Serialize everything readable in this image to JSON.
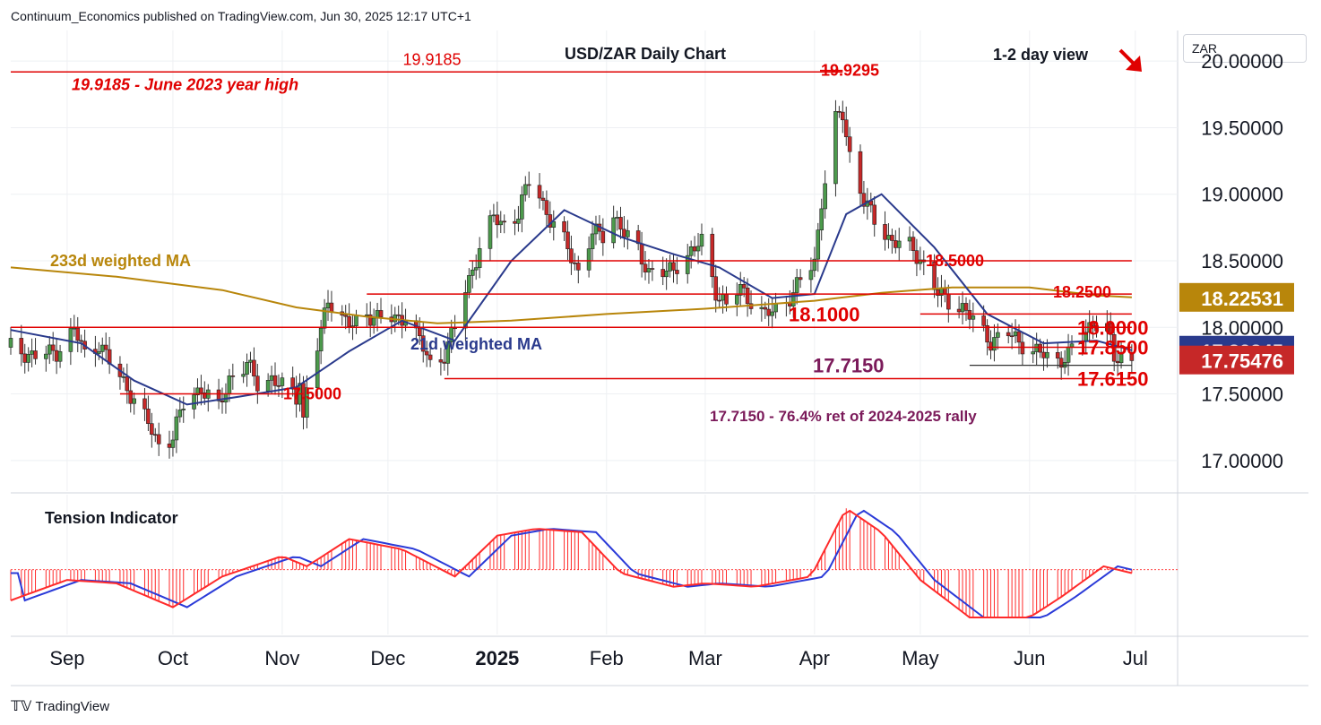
{
  "header": {
    "published": "Continuum_Economics published on TradingView.com, Jun 30, 2025 12:17 UTC+1"
  },
  "footer": {
    "brand": "TradingView"
  },
  "currency_label": "ZAR",
  "colors": {
    "up": "#4c9a4c",
    "down": "#c62828",
    "red_line": "#e00000",
    "ma233": "#b8860b",
    "ma21": "#2a3a8c",
    "purple": "#7b1a5a",
    "tension_red": "#ff2a2a",
    "tension_blue": "#2a3ad8"
  },
  "chart_data": [
    {
      "type": "candlestick",
      "title": "USD/ZAR Daily Chart",
      "subtitle": "1-2 day view",
      "ylim": [
        16.77,
        20.23
      ],
      "y_ticks": [
        20.0,
        19.5,
        19.0,
        18.5,
        18.0,
        17.5,
        17.0
      ],
      "y_tick_labels": [
        "20.00000",
        "19.50000",
        "19.00000",
        "18.50000",
        "18.00000",
        "17.50000",
        "17.00000"
      ],
      "x_labels": [
        "Sep",
        "Oct",
        "Nov",
        "Dec",
        "2025",
        "Feb",
        "Mar",
        "Apr",
        "May",
        "Jun",
        "Jul"
      ],
      "x_label_dates": [
        "2024-09-01",
        "2024-10-01",
        "2024-11-01",
        "2024-12-01",
        "2025-01-01",
        "2025-02-01",
        "2025-03-01",
        "2025-04-01",
        "2025-05-01",
        "2025-06-01",
        "2025-07-01"
      ],
      "price_tags": [
        {
          "label": "18.22531",
          "value": 18.22531,
          "color": "#b8860b"
        },
        {
          "label": "17.82845",
          "value": 17.82845,
          "color": "#2a3a8c"
        },
        {
          "label": "17.75476",
          "value": 17.75476,
          "color": "#c62828"
        }
      ],
      "levels": [
        {
          "value": 19.9185,
          "label": "19.9185",
          "x1": "2024-08-16",
          "x2": "2025-04-09"
        },
        {
          "value": 18.5,
          "label": "18.5000",
          "x1": "2024-12-24",
          "x2": "2025-06-30"
        },
        {
          "value": 18.25,
          "label": "18.2500",
          "x1": "2024-11-25",
          "x2": "2025-06-30"
        },
        {
          "value": 18.1,
          "label": "18.1000",
          "x1": "2025-05-01",
          "x2": "2025-06-30"
        },
        {
          "value": 18.0,
          "label": "18.0000",
          "x1": "2024-08-16",
          "x2": "2025-06-30"
        },
        {
          "value": 17.85,
          "label": "17.8500",
          "x1": "2025-05-20",
          "x2": "2025-06-30"
        },
        {
          "value": 17.615,
          "label": "17.6150",
          "x1": "2024-12-17",
          "x2": "2025-06-30"
        },
        {
          "value": 17.5,
          "label": "17.5000",
          "x1": "2024-09-16",
          "x2": "2024-11-07"
        }
      ],
      "fib_level": {
        "value": 17.715,
        "label": "17.7150",
        "x1": "2025-05-15",
        "x2": "2025-06-30"
      },
      "peak_label": {
        "value": 19.9295,
        "label": "19.9295",
        "date": "2025-04-09"
      },
      "annotations": [
        "19.9185 - June 2023 year high",
        "233d weighted MA",
        "21d weighted MA",
        "17.7150 - 76.4% ret of 2024-2025 rally"
      ],
      "close_path": [
        [
          "2024-08-16",
          17.85
        ],
        [
          "2024-08-23",
          17.78
        ],
        [
          "2024-08-29",
          17.82
        ],
        [
          "2024-09-03",
          17.98
        ],
        [
          "2024-09-06",
          17.8
        ],
        [
          "2024-09-10",
          17.88
        ],
        [
          "2024-09-13",
          17.74
        ],
        [
          "2024-09-18",
          17.55
        ],
        [
          "2024-09-23",
          17.32
        ],
        [
          "2024-09-27",
          17.12
        ],
        [
          "2024-10-01",
          17.18
        ],
        [
          "2024-10-04",
          17.42
        ],
        [
          "2024-10-09",
          17.55
        ],
        [
          "2024-10-14",
          17.38
        ],
        [
          "2024-10-17",
          17.62
        ],
        [
          "2024-10-22",
          17.72
        ],
        [
          "2024-10-25",
          17.58
        ],
        [
          "2024-10-29",
          17.62
        ],
        [
          "2024-11-01",
          17.55
        ],
        [
          "2024-11-05",
          17.48
        ],
        [
          "2024-11-06",
          17.62
        ],
        [
          "2024-11-07",
          17.3
        ],
        [
          "2024-11-08",
          17.55
        ],
        [
          "2024-11-12",
          17.95
        ],
        [
          "2024-11-14",
          18.22
        ],
        [
          "2024-11-18",
          18.08
        ],
        [
          "2024-11-21",
          18.0
        ],
        [
          "2024-11-25",
          18.1
        ],
        [
          "2024-11-28",
          18.08
        ],
        [
          "2024-12-03",
          18.05
        ],
        [
          "2024-12-06",
          18.1
        ],
        [
          "2024-12-10",
          17.9
        ],
        [
          "2024-12-13",
          17.72
        ],
        [
          "2024-12-17",
          17.8
        ],
        [
          "2024-12-20",
          18.0
        ],
        [
          "2024-12-23",
          18.28
        ],
        [
          "2024-12-27",
          18.6
        ],
        [
          "2024-12-31",
          18.82
        ],
        [
          "2025-01-03",
          18.78
        ],
        [
          "2025-01-07",
          18.85
        ],
        [
          "2025-01-10",
          19.1
        ],
        [
          "2025-01-13",
          19.0
        ],
        [
          "2025-01-16",
          18.8
        ],
        [
          "2025-01-21",
          18.6
        ],
        [
          "2025-01-24",
          18.42
        ],
        [
          "2025-01-28",
          18.7
        ],
        [
          "2025-01-31",
          18.7
        ],
        [
          "2025-02-03",
          18.85
        ],
        [
          "2025-02-06",
          18.7
        ],
        [
          "2025-02-10",
          18.58
        ],
        [
          "2025-02-13",
          18.42
        ],
        [
          "2025-02-18",
          18.4
        ],
        [
          "2025-02-21",
          18.48
        ],
        [
          "2025-02-26",
          18.58
        ],
        [
          "2025-02-28",
          18.65
        ],
        [
          "2025-03-04",
          18.28
        ],
        [
          "2025-03-07",
          18.15
        ],
        [
          "2025-03-11",
          18.3
        ],
        [
          "2025-03-14",
          18.2
        ],
        [
          "2025-03-18",
          18.08
        ],
        [
          "2025-03-21",
          18.15
        ],
        [
          "2025-03-26",
          18.25
        ],
        [
          "2025-03-28",
          18.35
        ],
        [
          "2025-04-01",
          18.5
        ],
        [
          "2025-04-03",
          18.95
        ],
        [
          "2025-04-07",
          19.55
        ],
        [
          "2025-04-09",
          19.6
        ],
        [
          "2025-04-11",
          19.3
        ],
        [
          "2025-04-15",
          18.95
        ],
        [
          "2025-04-18",
          18.8
        ],
        [
          "2025-04-23",
          18.65
        ],
        [
          "2025-04-28",
          18.6
        ],
        [
          "2025-05-01",
          18.52
        ],
        [
          "2025-05-06",
          18.25
        ],
        [
          "2025-05-09",
          18.2
        ],
        [
          "2025-05-13",
          18.15
        ],
        [
          "2025-05-16",
          18.05
        ],
        [
          "2025-05-21",
          17.9
        ],
        [
          "2025-05-26",
          17.95
        ],
        [
          "2025-05-30",
          17.88
        ],
        [
          "2025-06-04",
          17.8
        ],
        [
          "2025-06-09",
          17.75
        ],
        [
          "2025-06-12",
          17.8
        ],
        [
          "2025-06-16",
          17.92
        ],
        [
          "2025-06-19",
          18.05
        ],
        [
          "2025-06-23",
          18.0
        ],
        [
          "2025-06-25",
          17.75
        ],
        [
          "2025-06-27",
          17.78
        ],
        [
          "2025-06-30",
          17.755
        ]
      ],
      "ma233": [
        [
          "2024-08-16",
          18.45
        ],
        [
          "2024-09-15",
          18.38
        ],
        [
          "2024-10-15",
          18.28
        ],
        [
          "2024-11-05",
          18.15
        ],
        [
          "2024-11-25",
          18.08
        ],
        [
          "2024-12-15",
          18.03
        ],
        [
          "2025-01-05",
          18.05
        ],
        [
          "2025-02-01",
          18.1
        ],
        [
          "2025-03-01",
          18.14
        ],
        [
          "2025-04-01",
          18.2
        ],
        [
          "2025-04-20",
          18.26
        ],
        [
          "2025-05-10",
          18.3
        ],
        [
          "2025-06-01",
          18.3
        ],
        [
          "2025-06-20",
          18.24
        ],
        [
          "2025-06-30",
          18.22531
        ]
      ],
      "ma21": [
        [
          "2024-08-16",
          17.98
        ],
        [
          "2024-09-05",
          17.88
        ],
        [
          "2024-09-20",
          17.6
        ],
        [
          "2024-10-05",
          17.42
        ],
        [
          "2024-10-20",
          17.48
        ],
        [
          "2024-11-05",
          17.55
        ],
        [
          "2024-11-20",
          17.82
        ],
        [
          "2024-12-05",
          18.05
        ],
        [
          "2024-12-20",
          17.9
        ],
        [
          "2025-01-05",
          18.5
        ],
        [
          "2025-01-20",
          18.88
        ],
        [
          "2025-02-05",
          18.68
        ],
        [
          "2025-02-20",
          18.55
        ],
        [
          "2025-03-05",
          18.45
        ],
        [
          "2025-03-20",
          18.22
        ],
        [
          "2025-04-01",
          18.25
        ],
        [
          "2025-04-10",
          18.85
        ],
        [
          "2025-04-20",
          19.0
        ],
        [
          "2025-05-05",
          18.6
        ],
        [
          "2025-05-20",
          18.1
        ],
        [
          "2025-06-05",
          17.88
        ],
        [
          "2025-06-20",
          17.9
        ],
        [
          "2025-06-30",
          17.82845
        ]
      ]
    },
    {
      "type": "line",
      "title": "Tension Indicator",
      "x": [
        "2024-08-16",
        "2024-09-01",
        "2024-09-15",
        "2024-10-01",
        "2024-10-15",
        "2024-11-01",
        "2024-11-08",
        "2024-11-20",
        "2024-12-05",
        "2024-12-20",
        "2025-01-01",
        "2025-01-12",
        "2025-01-25",
        "2025-02-05",
        "2025-02-20",
        "2025-03-01",
        "2025-03-15",
        "2025-03-31",
        "2025-04-10",
        "2025-04-20",
        "2025-05-01",
        "2025-05-15",
        "2025-06-01",
        "2025-06-10",
        "2025-06-22",
        "2025-06-30"
      ],
      "y": [
        -0.9,
        -0.3,
        -0.4,
        -1.1,
        -0.2,
        0.4,
        0.1,
        0.9,
        0.6,
        -0.2,
        1.0,
        1.2,
        1.1,
        -0.1,
        -0.5,
        -0.4,
        -0.5,
        -0.2,
        1.8,
        1.1,
        -0.3,
        -1.4,
        -1.4,
        -0.8,
        0.1,
        -0.1
      ]
    }
  ]
}
